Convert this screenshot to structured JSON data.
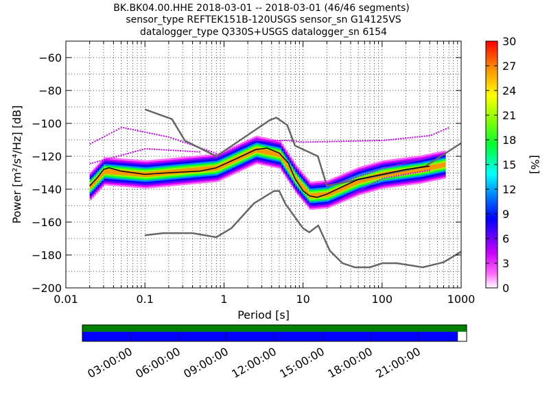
{
  "title": {
    "line1": "BK.BK04.00.HHE   2018-03-01 -- 2018-03-01  (46/46 segments)",
    "line2": "sensor_type REFTEK151B-120USGS sensor_sn G14125VS",
    "line3": "datalogger_type Q330S+USGS datalogger_sn 6154"
  },
  "colorbar": {
    "label": "[%]",
    "ticks": [
      "0",
      "3",
      "6",
      "9",
      "12",
      "15",
      "18",
      "21",
      "24",
      "27",
      "30"
    ],
    "range": [
      0,
      30
    ]
  },
  "timebar": {
    "labels": [
      "03:00:00",
      "06:00:00",
      "09:00:00",
      "12:00:00",
      "15:00:00",
      "18:00:00",
      "21:00:00"
    ],
    "data_coverage_fraction": 0.977,
    "colors": {
      "gaps": "#008000",
      "data": "#0000ff"
    }
  },
  "chart_data": {
    "type": "heatmap",
    "xlabel": "Period [s]",
    "ylabel": "Power [m²/s⁴/Hz] [dB]",
    "xscale": "log",
    "xlim": [
      0.01,
      1000
    ],
    "ylim": [
      -200,
      -50
    ],
    "xticks": [
      "0.01",
      "0.1",
      "1",
      "10",
      "100",
      "1000"
    ],
    "yticks": [
      "−200",
      "−180",
      "−160",
      "−140",
      "−120",
      "−100",
      "−80",
      "−60"
    ],
    "grid": true,
    "series": [
      {
        "name": "NHNM",
        "color": "#666666",
        "x": [
          0.1,
          0.22,
          0.32,
          0.8,
          3.8,
          4.6,
          6.3,
          7.9,
          15.4,
          20,
          354.8,
          1000
        ],
        "y": [
          -91.5,
          -97.4,
          -110.5,
          -120,
          -98,
          -96.5,
          -101,
          -113.5,
          -120,
          -138,
          -126,
          -112
        ]
      },
      {
        "name": "NLNM",
        "color": "#666666",
        "x": [
          0.1,
          0.17,
          0.4,
          0.8,
          1.24,
          2.4,
          4.3,
          5,
          6,
          10,
          12,
          15.6,
          21.9,
          31.6,
          45,
          70,
          101,
          154,
          328,
          600,
          1000
        ],
        "y": [
          -168,
          -166.7,
          -166.7,
          -169.2,
          -163.7,
          -148.6,
          -141.1,
          -141.1,
          -149,
          -163.8,
          -166.2,
          -162.1,
          -177.5,
          -185,
          -187.5,
          -187.5,
          -185,
          -185,
          -187.5,
          -184.4,
          -178
        ]
      },
      {
        "name": "mode",
        "color": "#000000",
        "x": [
          0.02,
          0.025,
          0.03,
          0.035,
          0.05,
          0.1,
          0.2,
          0.5,
          0.8,
          1.5,
          2.5,
          3.5,
          5,
          6.5,
          8,
          10,
          12,
          15,
          20,
          30,
          50,
          100,
          200,
          400
        ],
        "y": [
          -138,
          -133,
          -128,
          -127,
          -129,
          -131,
          -130,
          -129,
          -127,
          -121,
          -116,
          -115,
          -118,
          -124,
          -134,
          -141,
          -144,
          -145,
          -143,
          -139,
          -134,
          -131,
          -128,
          -126
        ]
      }
    ],
    "heat_band": {
      "x": [
        0.02,
        0.03,
        0.1,
        0.8,
        2.5,
        5,
        8,
        12,
        20,
        50,
        100,
        300,
        600
      ],
      "y_center": [
        -138,
        -129,
        -131,
        -127,
        -116,
        -119,
        -134,
        -144,
        -143,
        -135,
        -131,
        -128,
        -125
      ],
      "spread_db": 8
    }
  }
}
